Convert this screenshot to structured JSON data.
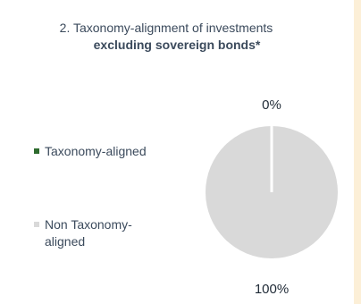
{
  "colors": {
    "background": "#fcefd7",
    "panel": "#ffffff",
    "aligned": "#2e6b2e",
    "non_aligned": "#d9d9d9",
    "text": "#3b4a5c"
  },
  "chart_data": {
    "type": "pie",
    "title_line1": "2. Taxonomy-alignment  of investments",
    "title_line2": "excluding sovereign bonds*",
    "legend_position": "left",
    "slices": [
      {
        "label_line1": "Taxonomy-aligned",
        "label_line2": "",
        "value": 0,
        "data_label": "0%",
        "color": "#2e6b2e"
      },
      {
        "label_line1": "Non Taxonomy-",
        "label_line2": "aligned",
        "value": 100,
        "data_label": "100%",
        "color": "#d9d9d9"
      }
    ]
  }
}
